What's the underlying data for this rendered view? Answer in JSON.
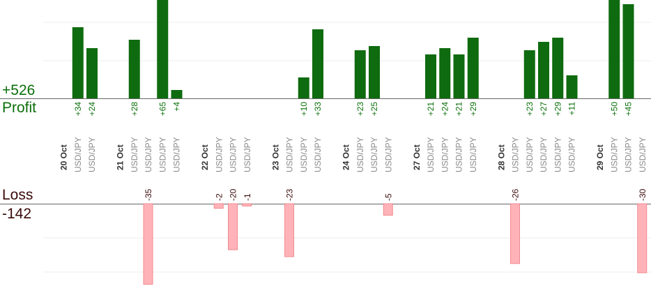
{
  "profit": {
    "total": "+526",
    "label": "Profit"
  },
  "loss": {
    "label": "Loss",
    "total": "-142"
  },
  "colors": {
    "profit_bar": "#0f6b0f",
    "profit_label": "#0a6e0a",
    "loss_bar": "#ffb3b8",
    "loss_label": "#3a0a0a",
    "date_label": "#333333",
    "symbol_label": "#8a8a8a"
  },
  "chart_data": {
    "type": "bar",
    "profit_axis_max": 48,
    "loss_axis_max": 36,
    "columns": [
      {
        "kind": "date",
        "label": "20 Oct"
      },
      {
        "kind": "trade",
        "label": "USD/JPY",
        "value": 34
      },
      {
        "kind": "trade",
        "label": "USD/JPY",
        "value": 24
      },
      {
        "kind": "blank"
      },
      {
        "kind": "date",
        "label": "21 Oct"
      },
      {
        "kind": "trade",
        "label": "USD/JPY",
        "value": 28
      },
      {
        "kind": "trade",
        "label": "USD/JPY",
        "value": -35
      },
      {
        "kind": "trade",
        "label": "USD/JPY",
        "value": 65
      },
      {
        "kind": "trade",
        "label": "USD/JPY",
        "value": 4
      },
      {
        "kind": "blank"
      },
      {
        "kind": "date",
        "label": "22 Oct"
      },
      {
        "kind": "trade",
        "label": "USD/JPY",
        "value": -2
      },
      {
        "kind": "trade",
        "label": "USD/JPY",
        "value": -20
      },
      {
        "kind": "trade",
        "label": "USD/JPY",
        "value": -1
      },
      {
        "kind": "blank"
      },
      {
        "kind": "date",
        "label": "23 Oct"
      },
      {
        "kind": "trade",
        "label": "USD/JPY",
        "value": -23
      },
      {
        "kind": "trade",
        "label": "USD/JPY",
        "value": 10
      },
      {
        "kind": "trade",
        "label": "USD/JPY",
        "value": 33
      },
      {
        "kind": "blank"
      },
      {
        "kind": "date",
        "label": "24 Oct"
      },
      {
        "kind": "trade",
        "label": "USD/JPY",
        "value": 23
      },
      {
        "kind": "trade",
        "label": "USD/JPY",
        "value": 25
      },
      {
        "kind": "trade",
        "label": "USD/JPY",
        "value": -5
      },
      {
        "kind": "blank"
      },
      {
        "kind": "date",
        "label": "27 Oct"
      },
      {
        "kind": "trade",
        "label": "USD/JPY",
        "value": 21
      },
      {
        "kind": "trade",
        "label": "USD/JPY",
        "value": 24
      },
      {
        "kind": "trade",
        "label": "USD/JPY",
        "value": 21
      },
      {
        "kind": "trade",
        "label": "USD/JPY",
        "value": 29
      },
      {
        "kind": "blank"
      },
      {
        "kind": "date",
        "label": "28 Oct"
      },
      {
        "kind": "trade",
        "label": "USD/JPY",
        "value": -26
      },
      {
        "kind": "trade",
        "label": "USD/JPY",
        "value": 23
      },
      {
        "kind": "trade",
        "label": "USD/JPY",
        "value": 27
      },
      {
        "kind": "trade",
        "label": "USD/JPY",
        "value": 29
      },
      {
        "kind": "trade",
        "label": "USD/JPY",
        "value": 11
      },
      {
        "kind": "blank"
      },
      {
        "kind": "date",
        "label": "29 Oct"
      },
      {
        "kind": "trade",
        "label": "USD/JPY",
        "value": 50
      },
      {
        "kind": "trade",
        "label": "USD/JPY",
        "value": 45
      },
      {
        "kind": "trade",
        "label": "USD/JPY",
        "value": -30
      }
    ]
  }
}
